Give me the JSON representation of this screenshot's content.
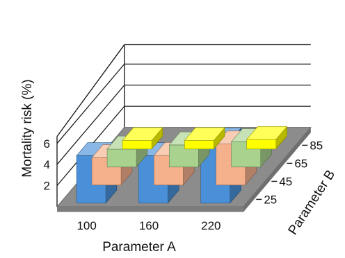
{
  "chart_data": {
    "type": "bar",
    "title": "",
    "xlabel": "Parameter A",
    "ylabel": "Mortality risk (%)",
    "zlabel": "Parameter B",
    "categories": [
      "100",
      "160",
      "220"
    ],
    "depth_categories": [
      "25",
      "45",
      "65",
      "85"
    ],
    "ytick_labels": [
      "2",
      "4",
      "6"
    ],
    "ylim": [
      0,
      7
    ],
    "grid": true,
    "series": [
      {
        "name": "25",
        "color": "#4a90d9",
        "values": [
          4.5,
          4.5,
          5.9
        ]
      },
      {
        "name": "45",
        "color": "#f5b08c",
        "values": [
          2.6,
          2.8,
          3.9
        ]
      },
      {
        "name": "65",
        "color": "#a8d28e",
        "values": [
          1.7,
          2.1,
          2.4
        ]
      },
      {
        "name": "85",
        "color": "#ffff00",
        "values": [
          0.8,
          0.8,
          0.9
        ]
      }
    ]
  }
}
